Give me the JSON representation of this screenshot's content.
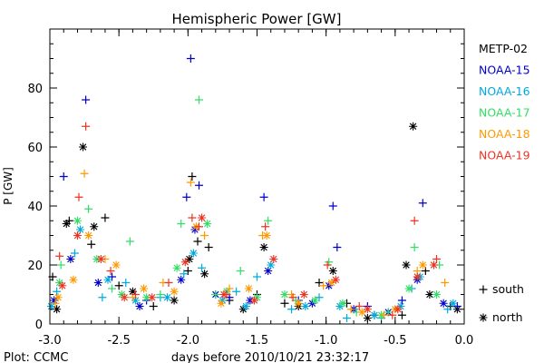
{
  "chart_data": {
    "type": "scatter",
    "title": "Hemispheric Power [GW]",
    "xlabel": "days before 2010/10/21 23:32:17",
    "ylabel": "P [GW]",
    "xlim": [
      -3.0,
      0.0
    ],
    "ylim": [
      0,
      100
    ],
    "x_ticks": [
      "-3.0",
      "-2.5",
      "-2.0",
      "-1.5",
      "-1.0",
      "-0.5",
      "0.0"
    ],
    "y_ticks": [
      "0",
      "20",
      "40",
      "60",
      "80"
    ],
    "footer": "Plot: CCMC",
    "marker_legend": [
      {
        "marker": "+",
        "label": "south"
      },
      {
        "marker": "*",
        "label": "north"
      }
    ],
    "series": [
      {
        "name": "METP-02",
        "color": "#000000",
        "south": [
          [
            -2.98,
            16
          ],
          [
            -2.86,
            35
          ],
          [
            -2.7,
            27
          ],
          [
            -2.6,
            36
          ],
          [
            -2.5,
            13
          ],
          [
            -2.25,
            6
          ],
          [
            -2.0,
            18
          ],
          [
            -1.97,
            50
          ],
          [
            -1.93,
            28
          ],
          [
            -1.85,
            26
          ],
          [
            -1.7,
            8
          ],
          [
            -1.5,
            10
          ],
          [
            -1.3,
            7
          ],
          [
            -1.05,
            14
          ],
          [
            -0.85,
            7
          ],
          [
            -0.65,
            3
          ],
          [
            -0.45,
            3
          ],
          [
            -0.28,
            18
          ],
          [
            -0.1,
            6
          ]
        ],
        "north": [
          [
            -2.95,
            5
          ],
          [
            -2.88,
            34
          ],
          [
            -2.76,
            60
          ],
          [
            -2.68,
            33
          ],
          [
            -2.4,
            11
          ],
          [
            -2.1,
            8
          ],
          [
            -1.99,
            22
          ],
          [
            -1.88,
            17
          ],
          [
            -1.6,
            5
          ],
          [
            -1.45,
            26
          ],
          [
            -1.2,
            6
          ],
          [
            -0.95,
            18
          ],
          [
            -0.7,
            2
          ],
          [
            -0.42,
            20
          ],
          [
            -0.37,
            67
          ],
          [
            -0.25,
            10
          ],
          [
            -0.05,
            5
          ]
        ]
      },
      {
        "name": "NOAA-15",
        "color": "#0000cc",
        "south": [
          [
            -2.9,
            50
          ],
          [
            -2.74,
            76
          ],
          [
            -2.55,
            16
          ],
          [
            -2.3,
            8
          ],
          [
            -2.01,
            43
          ],
          [
            -1.98,
            90
          ],
          [
            -1.92,
            47
          ],
          [
            -1.7,
            9
          ],
          [
            -1.45,
            43
          ],
          [
            -1.2,
            8
          ],
          [
            -0.95,
            40
          ],
          [
            -0.92,
            26
          ],
          [
            -0.7,
            6
          ],
          [
            -0.45,
            8
          ],
          [
            -0.3,
            41
          ],
          [
            -0.05,
            6
          ]
        ],
        "north": [
          [
            -2.97,
            8
          ],
          [
            -2.85,
            22
          ],
          [
            -2.65,
            14
          ],
          [
            -2.35,
            6
          ],
          [
            -2.05,
            15
          ],
          [
            -1.95,
            32
          ],
          [
            -1.8,
            10
          ],
          [
            -1.55,
            8
          ],
          [
            -1.42,
            18
          ],
          [
            -1.1,
            7
          ],
          [
            -0.98,
            13
          ],
          [
            -0.8,
            5
          ],
          [
            -0.55,
            4
          ],
          [
            -0.34,
            15
          ],
          [
            -0.15,
            7
          ]
        ]
      },
      {
        "name": "NOAA-16",
        "color": "#00aadd",
        "south": [
          [
            -2.95,
            11
          ],
          [
            -2.82,
            24
          ],
          [
            -2.62,
            9
          ],
          [
            -2.45,
            14
          ],
          [
            -2.2,
            9
          ],
          [
            -2.03,
            17
          ],
          [
            -1.9,
            19
          ],
          [
            -1.65,
            11
          ],
          [
            -1.5,
            16
          ],
          [
            -1.25,
            5
          ],
          [
            -1.05,
            9
          ],
          [
            -0.85,
            2
          ],
          [
            -0.6,
            2
          ],
          [
            -0.38,
            12
          ],
          [
            -0.12,
            5
          ]
        ],
        "north": [
          [
            -2.99,
            6
          ],
          [
            -2.78,
            32
          ],
          [
            -2.58,
            15
          ],
          [
            -2.38,
            8
          ],
          [
            -2.15,
            9
          ],
          [
            -1.96,
            24
          ],
          [
            -1.75,
            8
          ],
          [
            -1.58,
            6
          ],
          [
            -1.4,
            20
          ],
          [
            -1.15,
            6
          ],
          [
            -0.9,
            6
          ],
          [
            -0.65,
            3
          ],
          [
            -0.46,
            6
          ],
          [
            -0.32,
            16
          ],
          [
            -0.08,
            7
          ]
        ]
      },
      {
        "name": "NOAA-17",
        "color": "#33dd66",
        "south": [
          [
            -2.92,
            20
          ],
          [
            -2.72,
            39
          ],
          [
            -2.55,
            12
          ],
          [
            -2.42,
            28
          ],
          [
            -2.2,
            10
          ],
          [
            -2.05,
            34
          ],
          [
            -1.92,
            76
          ],
          [
            -1.8,
            10
          ],
          [
            -1.62,
            18
          ],
          [
            -1.42,
            35
          ],
          [
            -1.22,
            8
          ],
          [
            -0.98,
            21
          ],
          [
            -0.78,
            4
          ],
          [
            -0.55,
            4
          ],
          [
            -0.36,
            26
          ],
          [
            -0.18,
            20
          ]
        ],
        "north": [
          [
            -2.93,
            14
          ],
          [
            -2.8,
            35
          ],
          [
            -2.66,
            22
          ],
          [
            -2.48,
            10
          ],
          [
            -2.3,
            9
          ],
          [
            -2.08,
            19
          ],
          [
            -1.86,
            34
          ],
          [
            -1.72,
            11
          ],
          [
            -1.5,
            9
          ],
          [
            -1.3,
            10
          ],
          [
            -1.08,
            8
          ],
          [
            -0.88,
            7
          ],
          [
            -0.6,
            3
          ],
          [
            -0.4,
            12
          ],
          [
            -0.2,
            10
          ]
        ]
      },
      {
        "name": "NOAA-18",
        "color": "#ff9900",
        "south": [
          [
            -2.96,
            7
          ],
          [
            -2.75,
            51
          ],
          [
            -2.6,
            22
          ],
          [
            -2.4,
            9
          ],
          [
            -2.18,
            14
          ],
          [
            -1.98,
            48
          ],
          [
            -1.88,
            30
          ],
          [
            -1.7,
            12
          ],
          [
            -1.46,
            30
          ],
          [
            -1.25,
            10
          ],
          [
            -1.02,
            13
          ],
          [
            -0.82,
            5
          ],
          [
            -0.58,
            3
          ],
          [
            -0.34,
            18
          ],
          [
            -0.14,
            14
          ]
        ],
        "north": [
          [
            -2.94,
            9
          ],
          [
            -2.83,
            15
          ],
          [
            -2.72,
            30
          ],
          [
            -2.52,
            20
          ],
          [
            -2.32,
            12
          ],
          [
            -2.1,
            11
          ],
          [
            -1.94,
            33
          ],
          [
            -1.76,
            7
          ],
          [
            -1.56,
            12
          ],
          [
            -1.43,
            30
          ],
          [
            -1.2,
            7
          ],
          [
            -0.96,
            14
          ],
          [
            -0.74,
            4
          ],
          [
            -0.5,
            5
          ],
          [
            -0.3,
            20
          ]
        ]
      },
      {
        "name": "NOAA-19",
        "color": "#ee3322",
        "south": [
          [
            -2.93,
            23
          ],
          [
            -2.79,
            43
          ],
          [
            -2.74,
            67
          ],
          [
            -2.56,
            18
          ],
          [
            -2.38,
            10
          ],
          [
            -2.14,
            14
          ],
          [
            -1.97,
            36
          ],
          [
            -1.92,
            33
          ],
          [
            -1.72,
            10
          ],
          [
            -1.44,
            33
          ],
          [
            -1.24,
            9
          ],
          [
            -0.99,
            20
          ],
          [
            -0.76,
            6
          ],
          [
            -0.52,
            3
          ],
          [
            -0.36,
            35
          ],
          [
            -0.2,
            22
          ]
        ],
        "north": [
          [
            -2.91,
            13
          ],
          [
            -2.8,
            30
          ],
          [
            -2.63,
            22
          ],
          [
            -2.46,
            9
          ],
          [
            -2.26,
            9
          ],
          [
            -2.02,
            21
          ],
          [
            -1.9,
            36
          ],
          [
            -1.74,
            10
          ],
          [
            -1.52,
            8
          ],
          [
            -1.38,
            22
          ],
          [
            -1.16,
            10
          ],
          [
            -0.93,
            15
          ],
          [
            -0.7,
            5
          ],
          [
            -0.48,
            5
          ],
          [
            -0.34,
            16
          ],
          [
            -0.22,
            20
          ]
        ]
      }
    ]
  }
}
